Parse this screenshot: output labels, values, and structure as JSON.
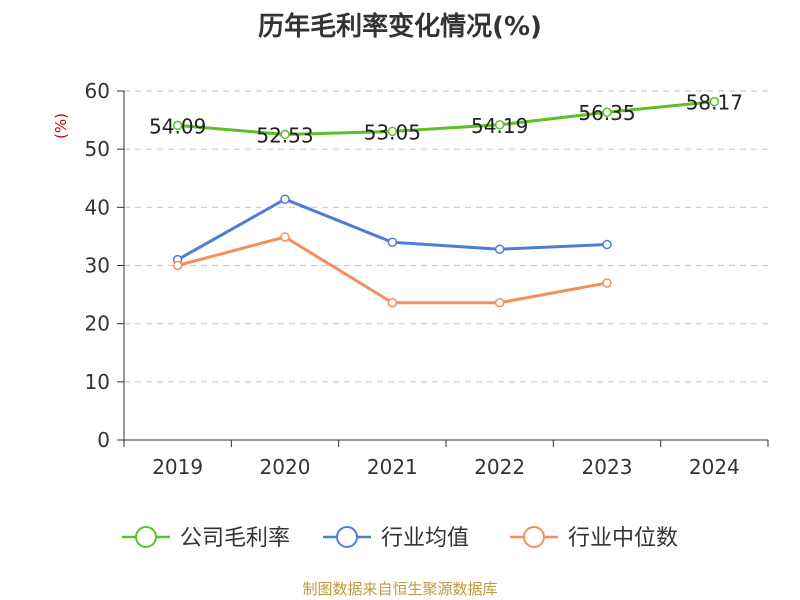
{
  "chart_data": {
    "type": "line",
    "title": "历年毛利率变化情况(%)",
    "ylabel": "(%)",
    "categories": [
      "2019",
      "2020",
      "2021",
      "2022",
      "2023",
      "2024"
    ],
    "ylim": [
      0,
      60
    ],
    "yticks": [
      0,
      10,
      20,
      30,
      40,
      50,
      60
    ],
    "grid": true,
    "legend_position": "bottom",
    "series": [
      {
        "name": "公司毛利率",
        "color": "#5ec026",
        "values": [
          54.09,
          52.53,
          53.05,
          54.19,
          56.35,
          58.17
        ],
        "labels": [
          "54.09",
          "52.53",
          "53.05",
          "54.19",
          "56.35",
          "58.17"
        ]
      },
      {
        "name": "行业均值",
        "color": "#4d7ed6",
        "values": [
          31.0,
          41.4,
          34.0,
          32.8,
          33.6,
          null
        ]
      },
      {
        "name": "行业中位数",
        "color": "#f58e5a",
        "values": [
          30.0,
          34.9,
          23.6,
          23.6,
          27.0,
          null
        ]
      }
    ]
  },
  "source": "制图数据来自恒生聚源数据库"
}
